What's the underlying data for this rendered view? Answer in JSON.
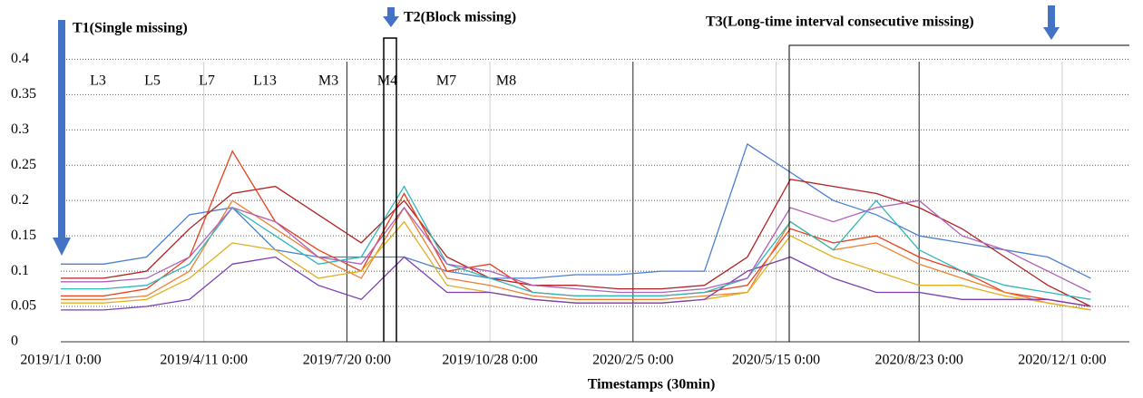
{
  "chart_data": {
    "type": "line",
    "x_label": "Timestamps (30min)",
    "annotations": [
      "T1(Single missing)",
      "T2(Block missing)",
      "T3(Long-time interval consecutive missing)"
    ],
    "x": [
      0,
      30,
      60,
      90,
      120,
      150,
      180,
      210,
      240,
      270,
      300,
      330,
      360,
      390,
      420,
      450,
      480,
      510,
      540,
      570,
      600,
      630,
      660,
      690,
      720
    ],
    "xlim": [
      0,
      747
    ],
    "xticks": [
      {
        "value": 0,
        "label": "2019/1/1 0:00"
      },
      {
        "value": 100,
        "label": "2019/4/11 0:00"
      },
      {
        "value": 200,
        "label": "2019/7/20 0:00"
      },
      {
        "value": 300,
        "label": "2019/10/28 0:00"
      },
      {
        "value": 400,
        "label": "2020/2/5 0:00"
      },
      {
        "value": 500,
        "label": "2020/5/15 0:00"
      },
      {
        "value": 600,
        "label": "2020/8/23 0:00"
      },
      {
        "value": 700,
        "label": "2020/12/1 0:00"
      }
    ],
    "ylim": [
      0,
      0.43
    ],
    "yticks": [
      0,
      0.05,
      0.1,
      0.15,
      0.2,
      0.25,
      0.3,
      0.35,
      0.4
    ],
    "grid": true,
    "series": [
      {
        "name": "L3",
        "color": "#4a7fd0",
        "values": [
          0.11,
          0.11,
          0.12,
          0.18,
          0.19,
          0.13,
          0.12,
          0.12,
          0.12,
          0.1,
          0.09,
          0.09,
          0.095,
          0.095,
          0.1,
          0.1,
          0.28,
          0.24,
          0.2,
          0.18,
          0.15,
          0.14,
          0.13,
          0.12,
          0.09
        ]
      },
      {
        "name": "L5",
        "color": "#b22222",
        "values": [
          0.09,
          0.09,
          0.1,
          0.16,
          0.21,
          0.22,
          0.18,
          0.14,
          0.2,
          0.12,
          0.09,
          0.08,
          0.08,
          0.075,
          0.075,
          0.08,
          0.12,
          0.23,
          0.22,
          0.21,
          0.19,
          0.16,
          0.12,
          0.08,
          0.05
        ]
      },
      {
        "name": "L7",
        "color": "#e8401c",
        "values": [
          0.065,
          0.065,
          0.075,
          0.12,
          0.27,
          0.17,
          0.13,
          0.1,
          0.21,
          0.1,
          0.11,
          0.07,
          0.065,
          0.065,
          0.065,
          0.07,
          0.08,
          0.16,
          0.14,
          0.15,
          0.12,
          0.1,
          0.07,
          0.06,
          0.05
        ]
      },
      {
        "name": "L13",
        "color": "#f08030",
        "values": [
          0.06,
          0.06,
          0.065,
          0.1,
          0.2,
          0.16,
          0.12,
          0.09,
          0.19,
          0.09,
          0.08,
          0.065,
          0.06,
          0.06,
          0.06,
          0.065,
          0.07,
          0.17,
          0.13,
          0.14,
          0.11,
          0.09,
          0.07,
          0.055,
          0.045
        ]
      },
      {
        "name": "M3",
        "color": "#e0b020",
        "values": [
          0.055,
          0.055,
          0.06,
          0.09,
          0.14,
          0.13,
          0.09,
          0.1,
          0.17,
          0.08,
          0.07,
          0.06,
          0.055,
          0.055,
          0.055,
          0.06,
          0.07,
          0.15,
          0.12,
          0.1,
          0.08,
          0.08,
          0.065,
          0.055,
          0.045
        ]
      },
      {
        "name": "M4",
        "color": "#7b3fb0",
        "values": [
          0.045,
          0.045,
          0.05,
          0.06,
          0.11,
          0.12,
          0.08,
          0.06,
          0.12,
          0.07,
          0.07,
          0.06,
          0.055,
          0.055,
          0.055,
          0.06,
          0.1,
          0.12,
          0.09,
          0.07,
          0.07,
          0.06,
          0.06,
          0.06,
          0.05
        ]
      },
      {
        "name": "M7",
        "color": "#2fb8b8",
        "values": [
          0.075,
          0.075,
          0.08,
          0.11,
          0.19,
          0.15,
          0.11,
          0.12,
          0.22,
          0.11,
          0.09,
          0.07,
          0.065,
          0.065,
          0.065,
          0.07,
          0.09,
          0.17,
          0.13,
          0.2,
          0.13,
          0.1,
          0.08,
          0.07,
          0.06
        ]
      },
      {
        "name": "M8",
        "color": "#b060b8",
        "values": [
          0.085,
          0.085,
          0.09,
          0.12,
          0.19,
          0.17,
          0.12,
          0.11,
          0.19,
          0.11,
          0.1,
          0.08,
          0.075,
          0.07,
          0.07,
          0.075,
          0.09,
          0.19,
          0.17,
          0.19,
          0.2,
          0.15,
          0.13,
          0.1,
          0.07
        ]
      }
    ]
  }
}
